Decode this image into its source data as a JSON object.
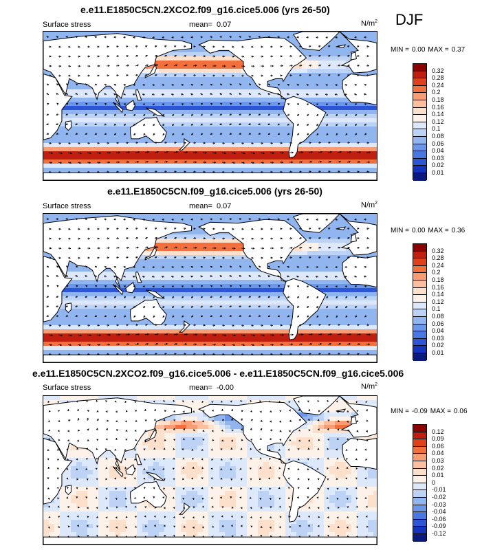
{
  "season": "DJF",
  "panels": [
    {
      "title": "e.e11.E1850C5CN.2XCO2.f09_g16.cice5.006 (yrs 26-50)",
      "variable": "Surface stress",
      "mean_label": "mean=",
      "mean_value": "0.07",
      "units": "N/m",
      "units_sup": "2",
      "min_label": "MIN =",
      "min_value": "0.00",
      "max_label": "MAX =",
      "max_value": "0.37",
      "legend_labels": [
        "0.32",
        "0.28",
        "0.24",
        "0.2",
        "0.18",
        "0.16",
        "0.14",
        "0.12",
        "0.1",
        "0.08",
        "0.06",
        "0.04",
        "0.03",
        "0.02",
        "0.01"
      ],
      "legend_colors": [
        "#8b0000",
        "#c01f10",
        "#e0401c",
        "#f2703e",
        "#f89c74",
        "#fbbfa0",
        "#fde0cc",
        "#fdf2ea",
        "#dde8fa",
        "#bcd3f6",
        "#91b5ef",
        "#6b97ea",
        "#4a78e2",
        "#2d56d6",
        "#1534bd",
        "#0a1a7e"
      ],
      "field_style": "absolute"
    },
    {
      "title": "e.e11.E1850C5CN.f09_g16.cice5.006 (yrs 26-50)",
      "variable": "Surface stress",
      "mean_label": "mean=",
      "mean_value": "0.07",
      "units": "N/m",
      "units_sup": "2",
      "min_label": "MIN =",
      "min_value": "0.00",
      "max_label": "MAX =",
      "max_value": "0.36",
      "legend_labels": [
        "0.32",
        "0.28",
        "0.24",
        "0.2",
        "0.18",
        "0.16",
        "0.14",
        "0.12",
        "0.1",
        "0.08",
        "0.06",
        "0.04",
        "0.03",
        "0.02",
        "0.01"
      ],
      "legend_colors": [
        "#8b0000",
        "#c01f10",
        "#e0401c",
        "#f2703e",
        "#f89c74",
        "#fbbfa0",
        "#fde0cc",
        "#fdf2ea",
        "#dde8fa",
        "#bcd3f6",
        "#91b5ef",
        "#6b97ea",
        "#4a78e2",
        "#2d56d6",
        "#1534bd",
        "#0a1a7e"
      ],
      "field_style": "absolute"
    },
    {
      "title": "e.e11.E1850C5CN.2XCO2.f09_g16.cice5.006 - e.e11.E1850C5CN.f09_g16.cice5.006",
      "variable": "Surface stress",
      "mean_label": "mean=",
      "mean_value": "-0.00",
      "units": "N/m",
      "units_sup": "2",
      "min_label": "MIN =",
      "min_value": "-0.09",
      "max_label": "MAX =",
      "max_value": "0.06",
      "legend_labels": [
        "0.12",
        "0.09",
        "0.06",
        "0.04",
        "0.03",
        "0.02",
        "0.01",
        "0",
        "-0.01",
        "-0.02",
        "-0.03",
        "-0.04",
        "-0.06",
        "-0.09",
        "-0.12"
      ],
      "legend_colors": [
        "#8b0000",
        "#c01f10",
        "#e0401c",
        "#f2703e",
        "#f89c74",
        "#fbbfa0",
        "#fde0cc",
        "#fdf2ea",
        "#dde8fa",
        "#bcd3f6",
        "#91b5ef",
        "#6b97ea",
        "#4a78e2",
        "#2d56d6",
        "#1534bd",
        "#0a1a7e"
      ],
      "field_style": "difference"
    }
  ],
  "colors": {
    "land": "#ffffff",
    "coast": "#000000",
    "arrow": "#000000"
  }
}
